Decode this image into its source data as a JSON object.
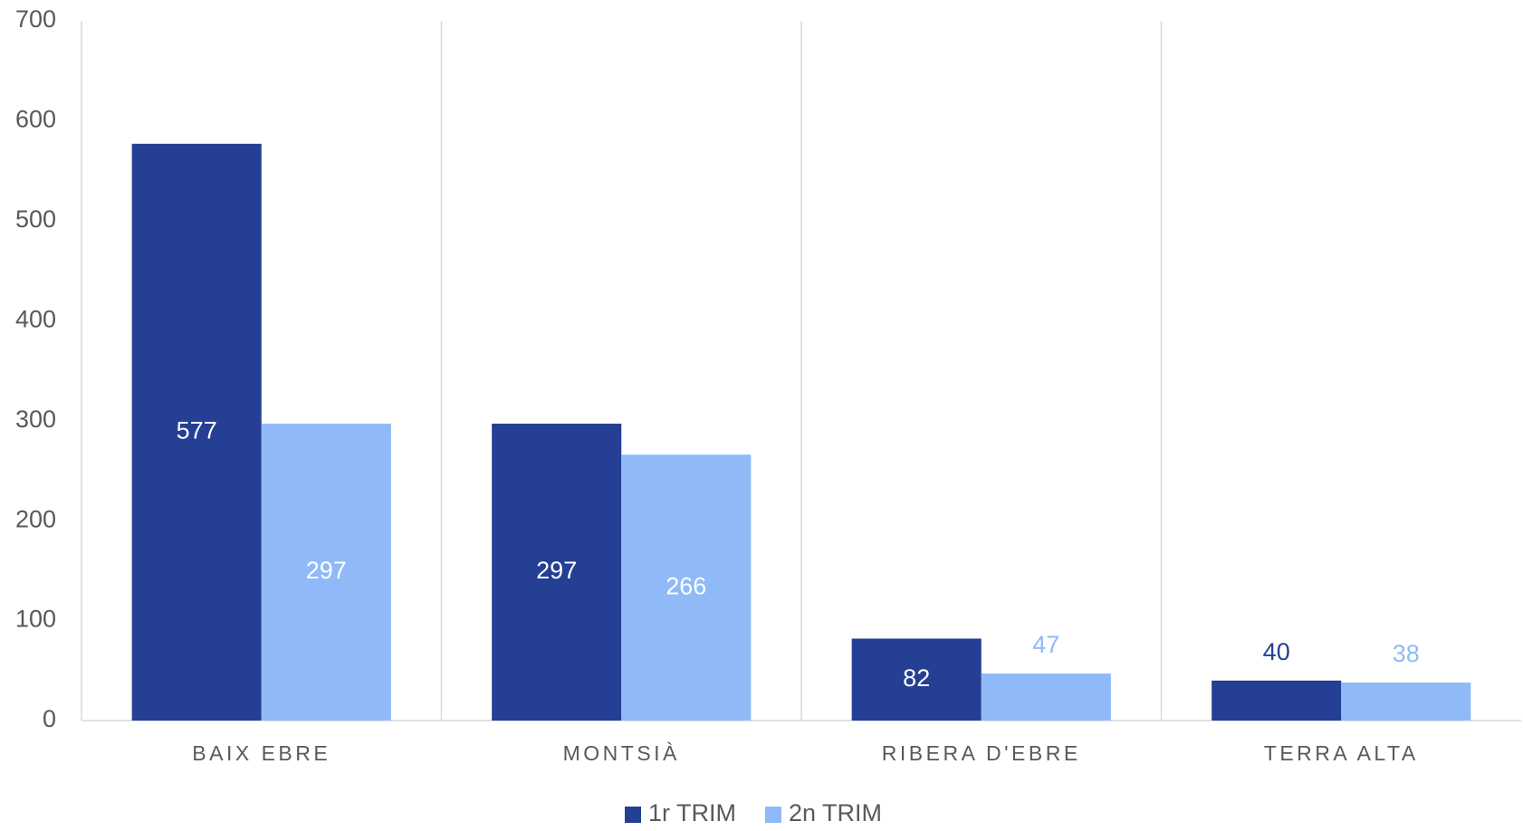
{
  "chart_data": {
    "type": "bar",
    "categories": [
      "BAIX EBRE",
      "MONTSIÀ",
      "RIBERA D'EBRE",
      "TERRA ALTA"
    ],
    "series": [
      {
        "name": "1r TRIM",
        "color": "#253f94",
        "values": [
          577,
          297,
          82,
          40
        ]
      },
      {
        "name": "2n TRIM",
        "color": "#8fbaf7",
        "values": [
          297,
          266,
          47,
          38
        ]
      }
    ],
    "ylim": [
      0,
      700
    ],
    "yticks": [
      0,
      100,
      200,
      300,
      400,
      500,
      600,
      700
    ],
    "legend": "bottom"
  }
}
